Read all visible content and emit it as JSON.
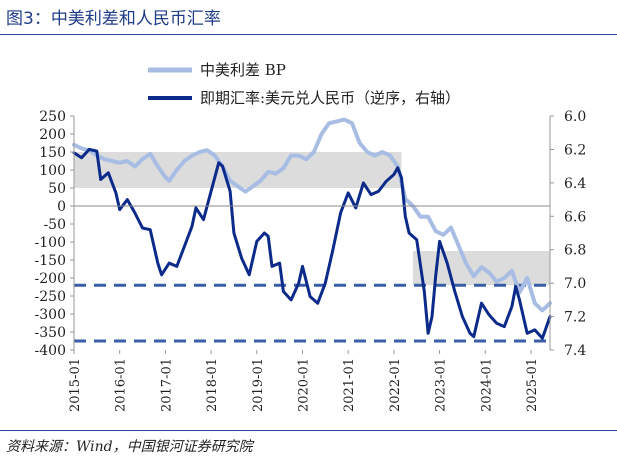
{
  "header": {
    "figure_title": "图3：中美利差和人民币汇率"
  },
  "footer": {
    "source": "资料来源：Wind，中国银河证券研究院"
  },
  "chart_data": {
    "type": "line",
    "title": "图3：中美利差和人民币汇率",
    "legend_position": "top",
    "grid": false,
    "x_tick_labels": [
      "2015-01",
      "2016-01",
      "2017-01",
      "2018-01",
      "2019-01",
      "2020-01",
      "2021-01",
      "2022-01",
      "2023-01",
      "2024-01",
      "2025-01"
    ],
    "xlim": [
      "2015-01",
      "2025-06"
    ],
    "y_left": {
      "ylim": [
        -400,
        250
      ],
      "ticks": [
        250,
        200,
        150,
        100,
        50,
        0,
        -50,
        -100,
        -150,
        -200,
        -250,
        -300,
        -350,
        -400
      ]
    },
    "y_right": {
      "ylim": [
        6.0,
        7.4
      ],
      "inverted": true,
      "ticks": [
        6.0,
        6.2,
        6.4,
        6.6,
        6.8,
        7.0,
        7.2,
        7.4
      ]
    },
    "bands": [
      {
        "axis": "left",
        "from": 50,
        "to": 150,
        "x_from": "2015-01",
        "x_to": "2022-03"
      },
      {
        "axis": "left",
        "from": -220,
        "to": -125,
        "x_from": "2022-06",
        "x_to": "2025-06"
      }
    ],
    "reference_lines": [
      {
        "axis": "left",
        "y": -220
      },
      {
        "axis": "left",
        "y": -375
      }
    ],
    "series": [
      {
        "name": "中美利差 BP",
        "axis": "left",
        "color": "#a7bde3",
        "points": [
          [
            "2015-01",
            170
          ],
          [
            "2015-03",
            160
          ],
          [
            "2015-05",
            155
          ],
          [
            "2015-07",
            140
          ],
          [
            "2015-09",
            130
          ],
          [
            "2015-11",
            125
          ],
          [
            "2016-01",
            120
          ],
          [
            "2016-03",
            125
          ],
          [
            "2016-05",
            110
          ],
          [
            "2016-07",
            130
          ],
          [
            "2016-09",
            145
          ],
          [
            "2016-11",
            110
          ],
          [
            "2017-01",
            80
          ],
          [
            "2017-02",
            70
          ],
          [
            "2017-04",
            100
          ],
          [
            "2017-06",
            125
          ],
          [
            "2017-08",
            140
          ],
          [
            "2017-10",
            150
          ],
          [
            "2017-12",
            155
          ],
          [
            "2018-02",
            140
          ],
          [
            "2018-04",
            110
          ],
          [
            "2018-06",
            70
          ],
          [
            "2018-08",
            55
          ],
          [
            "2018-10",
            40
          ],
          [
            "2018-12",
            55
          ],
          [
            "2019-02",
            70
          ],
          [
            "2019-04",
            95
          ],
          [
            "2019-06",
            90
          ],
          [
            "2019-08",
            105
          ],
          [
            "2019-10",
            140
          ],
          [
            "2019-12",
            140
          ],
          [
            "2020-02",
            130
          ],
          [
            "2020-04",
            150
          ],
          [
            "2020-06",
            200
          ],
          [
            "2020-08",
            230
          ],
          [
            "2020-10",
            235
          ],
          [
            "2020-12",
            240
          ],
          [
            "2021-02",
            230
          ],
          [
            "2021-04",
            175
          ],
          [
            "2021-06",
            150
          ],
          [
            "2021-08",
            140
          ],
          [
            "2021-10",
            150
          ],
          [
            "2021-12",
            140
          ],
          [
            "2022-02",
            110
          ],
          [
            "2022-04",
            20
          ],
          [
            "2022-06",
            0
          ],
          [
            "2022-08",
            -30
          ],
          [
            "2022-10",
            -30
          ],
          [
            "2022-12",
            -70
          ],
          [
            "2023-02",
            -80
          ],
          [
            "2023-04",
            -60
          ],
          [
            "2023-06",
            -110
          ],
          [
            "2023-08",
            -160
          ],
          [
            "2023-10",
            -195
          ],
          [
            "2023-12",
            -170
          ],
          [
            "2024-02",
            -185
          ],
          [
            "2024-04",
            -210
          ],
          [
            "2024-06",
            -200
          ],
          [
            "2024-08",
            -180
          ],
          [
            "2024-10",
            -240
          ],
          [
            "2024-12",
            -200
          ],
          [
            "2025-02",
            -270
          ],
          [
            "2025-04",
            -290
          ],
          [
            "2025-06",
            -270
          ]
        ]
      },
      {
        "name": "即期汇率:美元兑人民币（逆序，右轴）",
        "axis": "right",
        "color": "#0b2a8a",
        "points": [
          [
            "2015-01",
            6.22
          ],
          [
            "2015-03",
            6.25
          ],
          [
            "2015-05",
            6.2
          ],
          [
            "2015-07",
            6.21
          ],
          [
            "2015-08",
            6.38
          ],
          [
            "2015-10",
            6.34
          ],
          [
            "2015-12",
            6.46
          ],
          [
            "2016-01",
            6.56
          ],
          [
            "2016-03",
            6.5
          ],
          [
            "2016-05",
            6.58
          ],
          [
            "2016-07",
            6.67
          ],
          [
            "2016-09",
            6.68
          ],
          [
            "2016-11",
            6.88
          ],
          [
            "2016-12",
            6.95
          ],
          [
            "2017-02",
            6.88
          ],
          [
            "2017-04",
            6.9
          ],
          [
            "2017-06",
            6.78
          ],
          [
            "2017-08",
            6.66
          ],
          [
            "2017-09",
            6.55
          ],
          [
            "2017-11",
            6.62
          ],
          [
            "2018-01",
            6.45
          ],
          [
            "2018-03",
            6.28
          ],
          [
            "2018-04",
            6.3
          ],
          [
            "2018-06",
            6.45
          ],
          [
            "2018-07",
            6.7
          ],
          [
            "2018-09",
            6.85
          ],
          [
            "2018-11",
            6.95
          ],
          [
            "2019-01",
            6.75
          ],
          [
            "2019-03",
            6.7
          ],
          [
            "2019-04",
            6.72
          ],
          [
            "2019-05",
            6.9
          ],
          [
            "2019-07",
            6.88
          ],
          [
            "2019-08",
            7.05
          ],
          [
            "2019-10",
            7.1
          ],
          [
            "2019-12",
            7.0
          ],
          [
            "2020-01",
            6.9
          ],
          [
            "2020-03",
            7.08
          ],
          [
            "2020-05",
            7.12
          ],
          [
            "2020-07",
            7.0
          ],
          [
            "2020-09",
            6.8
          ],
          [
            "2020-11",
            6.58
          ],
          [
            "2021-01",
            6.46
          ],
          [
            "2021-03",
            6.55
          ],
          [
            "2021-05",
            6.4
          ],
          [
            "2021-07",
            6.47
          ],
          [
            "2021-09",
            6.45
          ],
          [
            "2021-11",
            6.39
          ],
          [
            "2022-01",
            6.35
          ],
          [
            "2022-02",
            6.31
          ],
          [
            "2022-03",
            6.37
          ],
          [
            "2022-04",
            6.6
          ],
          [
            "2022-05",
            6.7
          ],
          [
            "2022-07",
            6.74
          ],
          [
            "2022-09",
            7.05
          ],
          [
            "2022-10",
            7.3
          ],
          [
            "2022-11",
            7.2
          ],
          [
            "2022-12",
            6.95
          ],
          [
            "2023-01",
            6.75
          ],
          [
            "2023-03",
            6.88
          ],
          [
            "2023-05",
            7.05
          ],
          [
            "2023-07",
            7.2
          ],
          [
            "2023-09",
            7.3
          ],
          [
            "2023-10",
            7.32
          ],
          [
            "2023-12",
            7.12
          ],
          [
            "2024-02",
            7.19
          ],
          [
            "2024-04",
            7.24
          ],
          [
            "2024-06",
            7.26
          ],
          [
            "2024-08",
            7.14
          ],
          [
            "2024-09",
            7.02
          ],
          [
            "2024-10",
            7.1
          ],
          [
            "2024-12",
            7.3
          ],
          [
            "2025-02",
            7.28
          ],
          [
            "2025-04",
            7.33
          ],
          [
            "2025-06",
            7.2
          ]
        ]
      }
    ]
  }
}
